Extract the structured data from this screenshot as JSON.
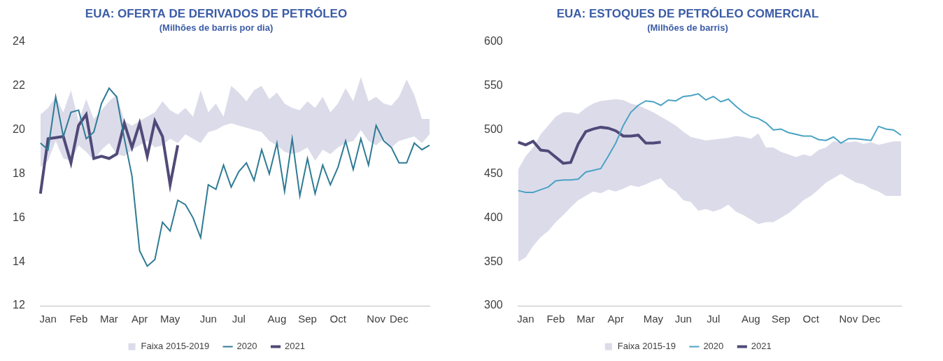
{
  "chart_data": [
    {
      "type": "line",
      "title": "EUA: OFERTA DE DERIVADOS DE PETRÓLEO",
      "subtitle": "(Milhões de barris por dia)",
      "categories": [
        null,
        "Jan",
        null,
        null,
        null,
        "Feb",
        null,
        null,
        null,
        "Mar",
        null,
        null,
        null,
        "Apr",
        null,
        null,
        null,
        "May",
        null,
        null,
        null,
        null,
        "Jun",
        null,
        null,
        null,
        "Jul",
        null,
        null,
        null,
        null,
        "Aug",
        null,
        null,
        null,
        "Sep",
        null,
        null,
        null,
        "Oct",
        null,
        null,
        null,
        null,
        "Nov",
        null,
        null,
        "Dec",
        null,
        null,
        null,
        null
      ],
      "series": [
        {
          "name": "Faixa 2015-2019",
          "type": "range",
          "color": "#dcdbea",
          "low": [
            18.3,
            18.6,
            19.5,
            18.7,
            18.6,
            19.3,
            19.0,
            18.6,
            19.1,
            19.4,
            18.9,
            18.8,
            19.1,
            19.3,
            19.5,
            19.2,
            19.3,
            19.6,
            19.4,
            19.8,
            19.6,
            19.4,
            19.9,
            20.0,
            20.2,
            20.3,
            20.2,
            20.1,
            20.0,
            19.9,
            19.5,
            19.3,
            19.0,
            18.9,
            19.0,
            19.2,
            18.6,
            19.1,
            18.9,
            19.2,
            19.4,
            19.5,
            20.0,
            19.5,
            19.3,
            19.6,
            19.2,
            19.5,
            19.6,
            19.7,
            19.4,
            19.8
          ],
          "high": [
            20.7,
            21.0,
            21.5,
            20.8,
            21.8,
            20.4,
            21.4,
            20.5,
            20.9,
            21.3,
            21.6,
            20.4,
            20.2,
            20.4,
            20.6,
            20.8,
            21.3,
            20.9,
            20.7,
            21.0,
            20.6,
            21.8,
            20.8,
            21.2,
            20.6,
            22.0,
            21.7,
            21.3,
            21.8,
            22.0,
            21.4,
            21.7,
            21.2,
            21.0,
            20.9,
            21.3,
            21.0,
            21.5,
            20.8,
            21.2,
            21.9,
            21.3,
            22.4,
            21.3,
            21.5,
            21.2,
            21.1,
            21.5,
            22.3,
            21.6,
            20.5,
            20.5
          ]
        },
        {
          "name": "2020",
          "color": "#2e7b94",
          "values": [
            19.4,
            19.1,
            21.5,
            19.7,
            20.8,
            20.9,
            19.6,
            19.9,
            21.2,
            21.9,
            21.5,
            19.6,
            17.9,
            14.5,
            13.8,
            14.1,
            15.8,
            15.4,
            16.8,
            16.6,
            16.0,
            15.1,
            17.5,
            17.3,
            18.4,
            17.4,
            18.1,
            18.5,
            17.7,
            19.1,
            18.0,
            19.4,
            17.2,
            19.6,
            17.0,
            18.7,
            17.1,
            18.4,
            17.5,
            18.3,
            19.5,
            18.2,
            19.6,
            18.4,
            20.2,
            19.5,
            19.2,
            18.5,
            18.5,
            19.4,
            19.1,
            19.3
          ]
        },
        {
          "name": "2021",
          "color": "#4f4a78",
          "values": [
            17.1,
            19.6,
            19.65,
            19.7,
            18.5,
            20.2,
            20.7,
            18.7,
            18.8,
            18.7,
            18.9,
            20.3,
            19.2,
            20.3,
            18.8,
            20.4,
            19.7,
            17.5,
            19.3,
            null,
            null,
            null,
            null,
            null,
            null,
            null,
            null,
            null,
            null,
            null,
            null,
            null,
            null,
            null,
            null,
            null,
            null,
            null,
            null,
            null,
            null,
            null,
            null,
            null,
            null,
            null,
            null,
            null,
            null,
            null,
            null,
            null
          ]
        }
      ],
      "ylim": [
        12,
        24
      ],
      "yticks": [
        12,
        14,
        16,
        18,
        20,
        22,
        24
      ],
      "grid": false,
      "legend": "bottom"
    },
    {
      "type": "line",
      "title": "EUA: ESTOQUES DE PETRÓLEO COMERCIAL",
      "subtitle": "(Milhões de barris)",
      "categories": [
        null,
        "Jan",
        null,
        null,
        null,
        "Feb",
        null,
        null,
        null,
        "Mar",
        null,
        null,
        null,
        "Apr",
        null,
        null,
        null,
        null,
        "May",
        null,
        null,
        null,
        "Jun",
        null,
        null,
        null,
        "Jul",
        null,
        null,
        null,
        null,
        "Aug",
        null,
        null,
        null,
        "Sep",
        null,
        null,
        null,
        "Oct",
        null,
        null,
        null,
        null,
        "Nov",
        null,
        null,
        "Dec",
        null,
        null,
        null,
        null
      ],
      "series": [
        {
          "name": "Faixa 2015-19",
          "type": "range",
          "color": "#dcdbea",
          "low": [
            350,
            355,
            368,
            378,
            385,
            395,
            403,
            412,
            420,
            425,
            430,
            428,
            432,
            430,
            433,
            437,
            435,
            438,
            442,
            445,
            435,
            430,
            420,
            418,
            408,
            410,
            407,
            410,
            415,
            407,
            403,
            398,
            393,
            395,
            395,
            400,
            405,
            412,
            420,
            425,
            432,
            440,
            445,
            450,
            445,
            440,
            438,
            433,
            430,
            425,
            425,
            425
          ],
          "high": [
            455,
            470,
            480,
            495,
            505,
            515,
            520,
            520,
            518,
            525,
            530,
            533,
            534,
            535,
            534,
            530,
            528,
            524,
            520,
            515,
            510,
            505,
            498,
            492,
            490,
            488,
            489,
            490,
            491,
            493,
            492,
            490,
            496,
            480,
            480,
            475,
            472,
            469,
            472,
            470,
            477,
            480,
            487,
            486,
            486,
            487,
            484,
            486,
            483,
            485,
            487,
            487
          ]
        },
        {
          "name": "2020",
          "color": "#4aa3c4",
          "values": [
            431,
            429,
            429,
            432,
            435,
            442,
            443,
            443,
            444,
            452,
            454,
            456,
            470,
            485,
            505,
            520,
            528,
            533,
            532,
            528,
            534,
            533,
            538,
            539,
            541,
            534,
            538,
            532,
            535,
            527,
            520,
            515,
            513,
            508,
            500,
            501,
            497,
            495,
            493,
            493,
            489,
            488,
            492,
            485,
            490,
            490,
            489,
            488,
            504,
            501,
            500,
            494
          ]
        },
        {
          "name": "2021",
          "color": "#4f4a78",
          "values": [
            486,
            483,
            487,
            477,
            476,
            469,
            462,
            463,
            484,
            498,
            501,
            503,
            502,
            499,
            493,
            493,
            494,
            485,
            485,
            486,
            null,
            null,
            null,
            null,
            null,
            null,
            null,
            null,
            null,
            null,
            null,
            null,
            null,
            null,
            null,
            null,
            null,
            null,
            null,
            null,
            null,
            null,
            null,
            null,
            null,
            null,
            null,
            null,
            null,
            null,
            null,
            null
          ]
        }
      ],
      "ylim": [
        300,
        600
      ],
      "yticks": [
        300,
        350,
        400,
        450,
        500,
        550,
        600
      ],
      "grid": false,
      "legend": "bottom"
    }
  ]
}
